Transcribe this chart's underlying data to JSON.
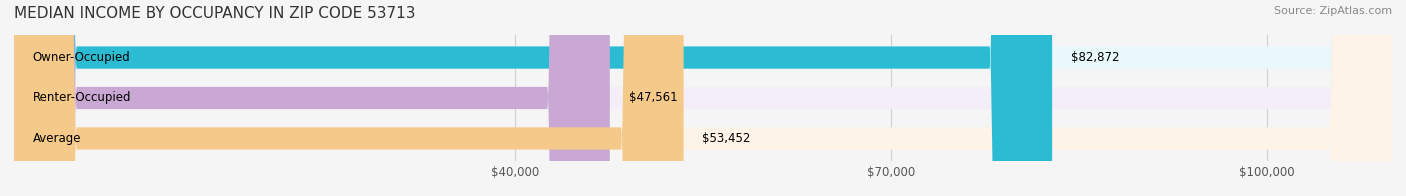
{
  "title": "MEDIAN INCOME BY OCCUPANCY IN ZIP CODE 53713",
  "source": "Source: ZipAtlas.com",
  "categories": [
    "Owner-Occupied",
    "Renter-Occupied",
    "Average"
  ],
  "values": [
    82872,
    47561,
    53452
  ],
  "bar_colors": [
    "#2bbcd4",
    "#c9a8d4",
    "#f5c98a"
  ],
  "bar_bg_colors": [
    "#e8f8fb",
    "#f3eef8",
    "#fdf3e7"
  ],
  "value_labels": [
    "$82,872",
    "$47,561",
    "$53,452"
  ],
  "xlim": [
    0,
    110000
  ],
  "xticks": [
    40000,
    70000,
    100000
  ],
  "xticklabels": [
    "$40,000",
    "$70,000",
    "$100,000"
  ],
  "bar_height": 0.55,
  "label_fontsize": 8.5,
  "title_fontsize": 11,
  "source_fontsize": 8,
  "value_fontsize": 8.5,
  "bg_color": "#f5f5f5",
  "bar_bg_alpha": 1.0,
  "grid_color": "#d0d0d0"
}
